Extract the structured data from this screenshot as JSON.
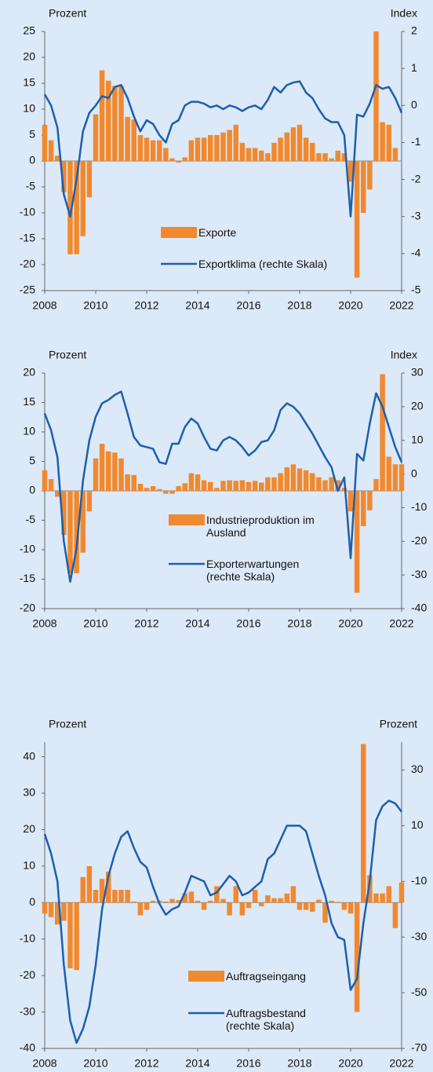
{
  "chart_data": [
    {
      "type": "combo",
      "y_label": "Prozent",
      "y2_label": "Index",
      "x": [
        2008,
        2008.25,
        2008.5,
        2008.75,
        2009,
        2009.25,
        2009.5,
        2009.75,
        2010,
        2010.25,
        2010.5,
        2010.75,
        2011,
        2011.25,
        2011.5,
        2011.75,
        2012,
        2012.25,
        2012.5,
        2012.75,
        2013,
        2013.25,
        2013.5,
        2013.75,
        2014,
        2014.25,
        2014.5,
        2014.75,
        2015,
        2015.25,
        2015.5,
        2015.75,
        2016,
        2016.25,
        2016.5,
        2016.75,
        2017,
        2017.25,
        2017.5,
        2017.75,
        2018,
        2018.25,
        2018.5,
        2018.75,
        2019,
        2019.25,
        2019.5,
        2019.75,
        2020,
        2020.25,
        2020.5,
        2020.75,
        2021,
        2021.25,
        2021.5,
        2021.75,
        2022
      ],
      "series": [
        {
          "name": "Exporte",
          "type": "bar",
          "color": "#f0892f",
          "values": [
            7,
            4,
            1,
            -6,
            -18,
            -18,
            -14.5,
            -7,
            9,
            17.5,
            15.5,
            14.5,
            14.5,
            8.5,
            8,
            5,
            4.5,
            4,
            4,
            2.5,
            0.5,
            -0.3,
            0.7,
            4,
            4.5,
            4.5,
            5,
            5,
            5.5,
            6,
            7,
            3.5,
            2.5,
            2.5,
            2,
            1.5,
            3.5,
            4.5,
            5.5,
            6.5,
            7,
            4.5,
            3.5,
            1.5,
            1.5,
            0.5,
            2,
            1.5,
            -4,
            -22.5,
            -10,
            -5.5,
            25,
            7.5,
            7,
            2.5,
            null
          ]
        },
        {
          "name": "Exportklima (rechte Skala)",
          "type": "line",
          "axis": "y2",
          "color": "#1d5fae",
          "values": [
            0.3,
            0,
            -0.6,
            -2.4,
            -3,
            -2,
            -0.7,
            -0.2,
            0,
            0.25,
            0.2,
            0.5,
            0.55,
            0.2,
            -0.3,
            -0.7,
            -0.4,
            -0.5,
            -0.8,
            -1,
            -0.5,
            -0.4,
            0,
            0.1,
            0.1,
            0.05,
            -0.05,
            0,
            -0.1,
            0,
            -0.05,
            -0.15,
            -0.05,
            0,
            -0.1,
            0.15,
            0.5,
            0.35,
            0.55,
            0.62,
            0.65,
            0.35,
            0.2,
            -0.1,
            -0.35,
            -0.45,
            -0.45,
            -0.8,
            -3,
            -0.25,
            -0.3,
            0.05,
            0.55,
            0.45,
            0.5,
            0.2,
            -0.2
          ]
        }
      ],
      "xlim": [
        2008,
        2022
      ],
      "xticks": [
        2008,
        2010,
        2012,
        2014,
        2016,
        2018,
        2020,
        2022
      ],
      "ylim": [
        -25,
        25
      ],
      "yticks": [
        25,
        20,
        15,
        10,
        5,
        0,
        -5,
        -10,
        -15,
        -20,
        -25
      ],
      "y2lim": [
        -5,
        2
      ],
      "y2ticks": [
        2,
        1,
        0,
        -1,
        -2,
        -3,
        -4,
        -5
      ]
    },
    {
      "type": "combo",
      "y_label": "Prozent",
      "y2_label": "Index",
      "x": [
        2008,
        2008.25,
        2008.5,
        2008.75,
        2009,
        2009.25,
        2009.5,
        2009.75,
        2010,
        2010.25,
        2010.5,
        2010.75,
        2011,
        2011.25,
        2011.5,
        2011.75,
        2012,
        2012.25,
        2012.5,
        2012.75,
        2013,
        2013.25,
        2013.5,
        2013.75,
        2014,
        2014.25,
        2014.5,
        2014.75,
        2015,
        2015.25,
        2015.5,
        2015.75,
        2016,
        2016.25,
        2016.5,
        2016.75,
        2017,
        2017.25,
        2017.5,
        2017.75,
        2018,
        2018.25,
        2018.5,
        2018.75,
        2019,
        2019.25,
        2019.5,
        2019.75,
        2020,
        2020.25,
        2020.5,
        2020.75,
        2021,
        2021.25,
        2021.5,
        2021.75,
        2022
      ],
      "series": [
        {
          "name": "Industrieproduktion im Ausland",
          "type": "bar",
          "color": "#f0892f",
          "values": [
            3.5,
            2,
            -1,
            -7.5,
            -14,
            -14,
            -10.5,
            -3.5,
            5.5,
            8,
            6.7,
            6.5,
            5.5,
            2.8,
            2.7,
            1.2,
            0.5,
            0.8,
            0.3,
            -0.5,
            -0.5,
            0.8,
            1.3,
            3,
            2.8,
            1.8,
            1.5,
            0.5,
            1.7,
            1.8,
            1.7,
            1.8,
            1.5,
            1.7,
            1.4,
            2.3,
            2.3,
            3,
            4,
            4.5,
            3.8,
            3.5,
            3,
            2.3,
            1.8,
            2.3,
            1.8,
            0.5,
            -3.5,
            -17.3,
            -6,
            -3.3,
            2,
            19.8,
            5.8,
            4.5,
            4.5
          ]
        },
        {
          "name": "Exporterwartungen (rechte Skala)",
          "type": "line",
          "axis": "y2",
          "color": "#1d5fae",
          "values": [
            18,
            13,
            5,
            -20,
            -32,
            -22,
            -2,
            10,
            17,
            21,
            22,
            23.5,
            24.5,
            18,
            11,
            8.5,
            8,
            7.5,
            3.5,
            3,
            9,
            9,
            14,
            16.5,
            15,
            11,
            7.5,
            7,
            10,
            11,
            10,
            8,
            5.5,
            7,
            9.5,
            10,
            13,
            19,
            21,
            20,
            18,
            15,
            12,
            8.5,
            5,
            2,
            -5,
            -1,
            -25,
            6,
            4,
            15,
            24,
            20,
            14,
            8,
            3.5
          ]
        }
      ],
      "xlim": [
        2008,
        2022
      ],
      "xticks": [
        2008,
        2010,
        2012,
        2014,
        2016,
        2018,
        2020,
        2022
      ],
      "ylim": [
        -20,
        20
      ],
      "yticks": [
        20,
        15,
        10,
        5,
        0,
        -5,
        -10,
        -15,
        -20
      ],
      "y2lim": [
        -40,
        30
      ],
      "y2ticks": [
        30,
        20,
        10,
        0,
        -10,
        -20,
        -30,
        -40
      ]
    },
    {
      "type": "combo",
      "y_label": "Prozent",
      "y2_label": "Prozent",
      "x": [
        2008,
        2008.25,
        2008.5,
        2008.75,
        2009,
        2009.25,
        2009.5,
        2009.75,
        2010,
        2010.25,
        2010.5,
        2010.75,
        2011,
        2011.25,
        2011.5,
        2011.75,
        2012,
        2012.25,
        2012.5,
        2012.75,
        2013,
        2013.25,
        2013.5,
        2013.75,
        2014,
        2014.25,
        2014.5,
        2014.75,
        2015,
        2015.25,
        2015.5,
        2015.75,
        2016,
        2016.25,
        2016.5,
        2016.75,
        2017,
        2017.25,
        2017.5,
        2017.75,
        2018,
        2018.25,
        2018.5,
        2018.75,
        2019,
        2019.25,
        2019.5,
        2019.75,
        2020,
        2020.25,
        2020.5,
        2020.75,
        2021,
        2021.25,
        2021.5,
        2021.75,
        2022
      ],
      "series": [
        {
          "name": "Auftragseingang",
          "type": "bar",
          "color": "#f0892f",
          "values": [
            -3,
            -4,
            -6,
            -5,
            -18,
            -18.5,
            7,
            10,
            3.5,
            6.5,
            8.5,
            3.5,
            3.5,
            3.5,
            0.3,
            -3.5,
            -2,
            0.5,
            0.5,
            0.3,
            1,
            0.7,
            2.5,
            3,
            0.5,
            -2,
            0.5,
            4.5,
            1,
            -3.5,
            4.5,
            -3.5,
            -1.5,
            3.5,
            -1,
            2,
            1.2,
            1.2,
            2.5,
            4.5,
            -2,
            -2,
            -2.5,
            0.8,
            -5.5,
            0.5,
            0.2,
            -2,
            -3,
            -30,
            43.5,
            7.5,
            2.5,
            2.5,
            4.5,
            -7,
            5.5
          ]
        },
        {
          "name": "Auftragsbestand (rechte Skala)",
          "type": "line",
          "axis": "y2",
          "color": "#1d5fae",
          "values": [
            7,
            0,
            -10,
            -40,
            -60,
            -68,
            -63,
            -55,
            -40,
            -20,
            -8,
            0,
            6,
            8,
            2,
            -3,
            -5,
            -12,
            -18,
            -22,
            -20,
            -19,
            -14,
            -8,
            -9,
            -10,
            -15,
            -14,
            -11,
            -8,
            -10,
            -15,
            -14,
            -12,
            -10,
            -2,
            0,
            5,
            10,
            10,
            10,
            8,
            0,
            -8,
            -15,
            -25,
            -30,
            -31,
            -49,
            -45,
            -25,
            -10,
            12,
            17,
            19,
            18,
            15
          ]
        }
      ],
      "xlim": [
        2008,
        2022
      ],
      "xticks": [
        2008,
        2010,
        2012,
        2014,
        2016,
        2018,
        2020,
        2022
      ],
      "ylim": [
        -40,
        44
      ],
      "yticks": [
        40,
        30,
        20,
        10,
        0,
        -10,
        -20,
        -30,
        -40
      ],
      "y2lim": [
        -70,
        40
      ],
      "y2ticks": [
        30,
        10,
        -10,
        -30,
        -50,
        -70
      ]
    }
  ]
}
